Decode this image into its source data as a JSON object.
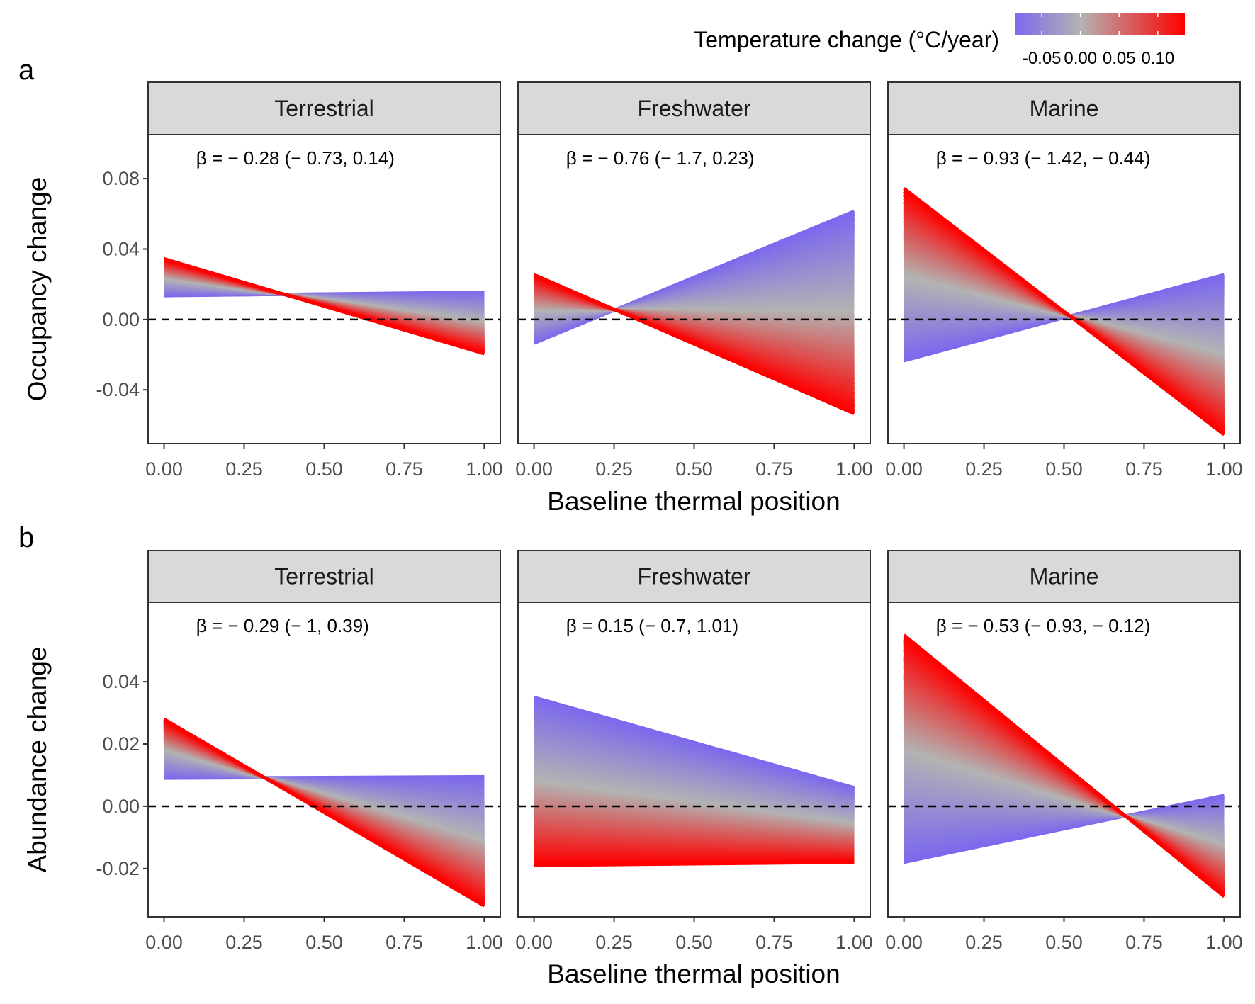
{
  "legend": {
    "title": "Temperature change (°C/year)",
    "ticks": [
      "-0.05",
      "0.00",
      "0.05",
      "0.10"
    ],
    "tick_values": [
      -0.05,
      0.0,
      0.05,
      0.1
    ],
    "range": [
      -0.085,
      0.135
    ],
    "colors": [
      "#7b68ee",
      "#b3b3b3",
      "#ff0000"
    ]
  },
  "chart_data": [
    {
      "panel": "a",
      "type": "area",
      "ylabel": "Occupancy change",
      "xlabel": "Baseline thermal position",
      "ylim": [
        -0.0705,
        0.105
      ],
      "xlim": [
        -0.05,
        1.05
      ],
      "yticks": [
        0.08,
        0.04,
        0.0,
        -0.04
      ],
      "ytick_labels": [
        "0.08",
        "0.04",
        "0.00",
        "-0.04"
      ],
      "xticks": [
        0,
        0.25,
        0.5,
        0.75,
        1.0
      ],
      "xtick_labels": [
        "0.00",
        "0.25",
        "0.50",
        "0.75",
        "1.00"
      ],
      "reference_line": {
        "y": 0,
        "style": "dashed"
      },
      "facets": [
        {
          "name": "Terrestrial",
          "beta_text": "β = − 0.28 (− 0.73, 0.14)",
          "min_temp_line": {
            "y0": 0.0135,
            "y1": 0.0155
          },
          "max_temp_line": {
            "y0": 0.0345,
            "y1": -0.0195
          }
        },
        {
          "name": "Freshwater",
          "beta_text": "β = − 0.76 (− 1.7, 0.23)",
          "min_temp_line": {
            "y0": -0.0135,
            "y1": 0.0615
          },
          "max_temp_line": {
            "y0": 0.0255,
            "y1": -0.0535
          }
        },
        {
          "name": "Marine",
          "beta_text": "β = − 0.93 (− 1.42, − 0.44)",
          "min_temp_line": {
            "y0": -0.0235,
            "y1": 0.0255
          },
          "max_temp_line": {
            "y0": 0.0745,
            "y1": -0.0655
          }
        }
      ]
    },
    {
      "panel": "b",
      "type": "area",
      "ylabel": "Abundance change",
      "xlabel": "Baseline thermal position",
      "ylim": [
        -0.0355,
        0.0655
      ],
      "xlim": [
        -0.05,
        1.05
      ],
      "yticks": [
        0.04,
        0.02,
        0.0,
        -0.02
      ],
      "ytick_labels": [
        "0.04",
        "0.02",
        "0.00",
        "-0.02"
      ],
      "xticks": [
        0,
        0.25,
        0.5,
        0.75,
        1.0
      ],
      "xtick_labels": [
        "0.00",
        "0.25",
        "0.50",
        "0.75",
        "1.00"
      ],
      "reference_line": {
        "y": 0,
        "style": "dashed"
      },
      "facets": [
        {
          "name": "Terrestrial",
          "beta_text": "β = − 0.29 (− 1, 0.39)",
          "min_temp_line": {
            "y0": 0.009,
            "y1": 0.0095
          },
          "max_temp_line": {
            "y0": 0.028,
            "y1": -0.032
          }
        },
        {
          "name": "Freshwater",
          "beta_text": "β = 0.15 (− 0.7, 1.01)",
          "min_temp_line": {
            "y0": 0.035,
            "y1": 0.006
          },
          "max_temp_line": {
            "y0": -0.019,
            "y1": -0.018
          }
        },
        {
          "name": "Marine",
          "beta_text": "β = − 0.53 (− 0.93, − 0.12)",
          "min_temp_line": {
            "y0": -0.018,
            "y1": 0.0035
          },
          "max_temp_line": {
            "y0": 0.055,
            "y1": -0.029
          }
        }
      ]
    }
  ]
}
